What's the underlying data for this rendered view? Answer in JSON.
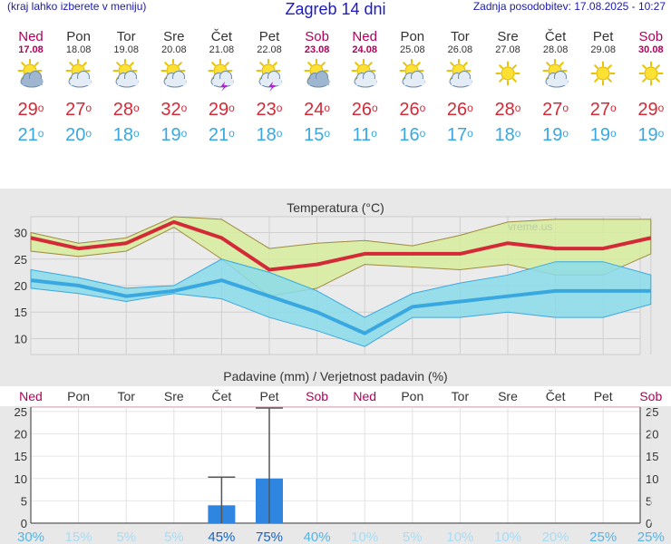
{
  "header": {
    "menu_hint": "(kraj lahko izberete v meniju)",
    "title": "Zagreb 14 dni",
    "last_update": "Zadnja posodobitev: 17.08.2025 - 10:27"
  },
  "days": [
    {
      "name": "Ned",
      "date": "17.08",
      "weekend": true,
      "icon": "sun-cloud-icon",
      "cloudy": true,
      "storm": false,
      "tmax": "29",
      "tmin": "21"
    },
    {
      "name": "Pon",
      "date": "18.08",
      "weekend": false,
      "icon": "sun-cloud-icon",
      "cloudy": false,
      "storm": false,
      "tmax": "27",
      "tmin": "20"
    },
    {
      "name": "Tor",
      "date": "19.08",
      "weekend": false,
      "icon": "sun-cloud-icon",
      "cloudy": false,
      "storm": false,
      "tmax": "28",
      "tmin": "18"
    },
    {
      "name": "Sre",
      "date": "20.08",
      "weekend": false,
      "icon": "sun-cloud-icon",
      "cloudy": false,
      "storm": false,
      "tmax": "32",
      "tmin": "19"
    },
    {
      "name": "Čet",
      "date": "21.08",
      "weekend": false,
      "icon": "sun-cloud-storm-icon",
      "cloudy": false,
      "storm": true,
      "tmax": "29",
      "tmin": "21"
    },
    {
      "name": "Pet",
      "date": "22.08",
      "weekend": false,
      "icon": "sun-cloud-storm-icon",
      "cloudy": false,
      "storm": true,
      "tmax": "23",
      "tmin": "18"
    },
    {
      "name": "Sob",
      "date": "23.08",
      "weekend": true,
      "icon": "sun-cloud-icon",
      "cloudy": true,
      "storm": false,
      "tmax": "24",
      "tmin": "15"
    },
    {
      "name": "Ned",
      "date": "24.08",
      "weekend": true,
      "icon": "sun-cloud-icon",
      "cloudy": false,
      "storm": false,
      "tmax": "26",
      "tmin": "11"
    },
    {
      "name": "Pon",
      "date": "25.08",
      "weekend": false,
      "icon": "sun-cloud-icon",
      "cloudy": false,
      "storm": false,
      "tmax": "26",
      "tmin": "16"
    },
    {
      "name": "Tor",
      "date": "26.08",
      "weekend": false,
      "icon": "sun-cloud-icon",
      "cloudy": false,
      "storm": false,
      "tmax": "26",
      "tmin": "17"
    },
    {
      "name": "Sre",
      "date": "27.08",
      "weekend": false,
      "icon": "sun-icon",
      "cloudy": false,
      "storm": false,
      "tmax": "28",
      "tmin": "18"
    },
    {
      "name": "Čet",
      "date": "28.08",
      "weekend": false,
      "icon": "sun-cloud-icon",
      "cloudy": false,
      "storm": false,
      "tmax": "27",
      "tmin": "19"
    },
    {
      "name": "Pet",
      "date": "29.08",
      "weekend": false,
      "icon": "sun-icon",
      "cloudy": false,
      "storm": false,
      "tmax": "27",
      "tmin": "19"
    },
    {
      "name": "Sob",
      "date": "30.08",
      "weekend": true,
      "icon": "sun-icon",
      "cloudy": false,
      "storm": false,
      "tmax": "29",
      "tmin": "19"
    }
  ],
  "degree_symbol": "o",
  "colors": {
    "weekend": "#b0005a",
    "tmax": "#d42a37",
    "tmin": "#3aa8e0",
    "max_band": "#d6ec9c",
    "min_band": "#8adcea",
    "precip_bar": "#2f86e0"
  },
  "chart_data": [
    {
      "type": "line",
      "title": "Temperatura (°C)",
      "watermark": "vreme.us",
      "ylim": [
        7,
        33
      ],
      "yticks": [
        10,
        15,
        20,
        25,
        30
      ],
      "grid": true,
      "x": [
        "17.08",
        "18.08",
        "19.08",
        "20.08",
        "21.08",
        "22.08",
        "23.08",
        "24.08",
        "25.08",
        "26.08",
        "27.08",
        "28.08",
        "29.08",
        "30.08"
      ],
      "series": [
        {
          "name": "max",
          "values": [
            29,
            27,
            28,
            32,
            29,
            23,
            24,
            26,
            26,
            26,
            28,
            27,
            27,
            29
          ]
        },
        {
          "name": "max_upper",
          "values": [
            30,
            28,
            29,
            33,
            32.5,
            27,
            28,
            28.5,
            27.5,
            29.5,
            32,
            32.5,
            32.5,
            32.5
          ]
        },
        {
          "name": "max_lower",
          "values": [
            26.5,
            25.5,
            26.5,
            31,
            25,
            18,
            19.5,
            24,
            23.5,
            23,
            24,
            22,
            22,
            26
          ]
        },
        {
          "name": "min",
          "values": [
            21,
            20,
            18,
            19,
            21,
            18,
            15,
            11,
            16,
            17,
            18,
            19,
            19,
            19
          ]
        },
        {
          "name": "min_upper",
          "values": [
            23,
            21.5,
            19.5,
            20,
            25,
            22.5,
            19,
            14,
            18.5,
            20.5,
            22,
            24.5,
            24.5,
            22
          ]
        },
        {
          "name": "min_lower",
          "values": [
            19.5,
            18.5,
            17,
            18.5,
            17.5,
            14,
            11.5,
            8.5,
            14,
            14,
            15,
            14,
            14,
            16.5
          ]
        }
      ]
    },
    {
      "type": "bar",
      "title": "Padavine (mm) / Verjetnost padavin (%)",
      "ylim": [
        0,
        26
      ],
      "yticks": [
        0,
        5,
        10,
        15,
        20,
        25
      ],
      "categories": [
        "Ned",
        "Pon",
        "Tor",
        "Sre",
        "Čet",
        "Pet",
        "Sob",
        "Ned",
        "Pon",
        "Tor",
        "Sre",
        "Čet",
        "Pet",
        "Sob"
      ],
      "weekend": [
        true,
        false,
        false,
        false,
        false,
        false,
        true,
        true,
        false,
        false,
        false,
        false,
        false,
        true
      ],
      "values": [
        0,
        0,
        0,
        0,
        4,
        10,
        0,
        0,
        0,
        0,
        0,
        0,
        0,
        0
      ],
      "error_upper": [
        0,
        0,
        0,
        0,
        10.3,
        25.8,
        0,
        0,
        0,
        0,
        0,
        0,
        0,
        0
      ],
      "probability": [
        "30%",
        "15%",
        "5%",
        "5%",
        "45%",
        "75%",
        "40%",
        "10%",
        "5%",
        "10%",
        "10%",
        "20%",
        "25%",
        "25%"
      ],
      "probability_level": [
        30,
        15,
        5,
        5,
        45,
        75,
        40,
        10,
        5,
        10,
        10,
        20,
        25,
        25
      ]
    }
  ]
}
